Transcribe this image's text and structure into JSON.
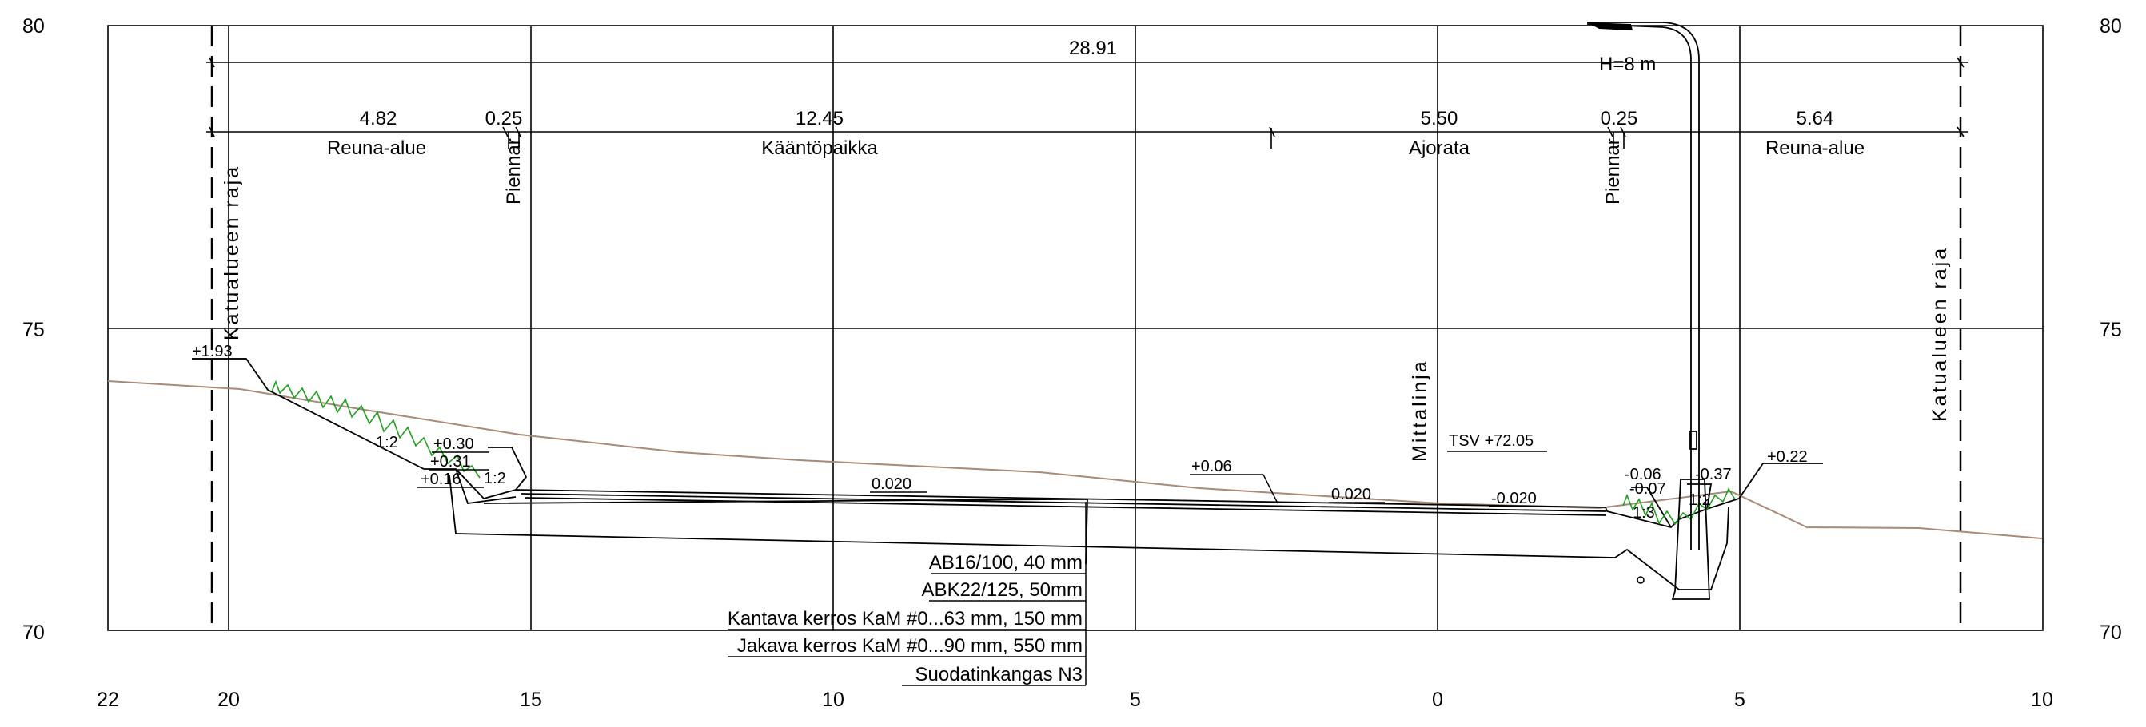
{
  "elevation_labels": {
    "top": "80",
    "middle": "75",
    "bottom": "70"
  },
  "offset_labels": [
    "22",
    "20",
    "15",
    "10",
    "5",
    "0",
    "5",
    "10"
  ],
  "total_width": "28.91",
  "pole_label": "H=8 m",
  "zones": [
    {
      "width": "4.82",
      "name": "Reuna-alue"
    },
    {
      "width": "0.25",
      "name": "Piennar"
    },
    {
      "width": "12.45",
      "name": "Kääntöpaikka"
    },
    {
      "width": "5.50",
      "name": "Ajorata"
    },
    {
      "width": "0.25",
      "name": "Piennar"
    },
    {
      "width": "5.64",
      "name": "Reuna-alue"
    }
  ],
  "boundary_left": "Katualueen raja",
  "boundary_right": "Katualueen raja",
  "centerline_label": "Mittalinja",
  "tsv_label": "TSV +72.05",
  "heights": {
    "left_top": "+1.93",
    "h030": "+0.30",
    "h031": "+0.31",
    "h016": "+0.16",
    "h006": "+0.06",
    "h_m006": "-0.06",
    "h_m007": "-0.07",
    "h_m037": "-0.37",
    "h022": "+0.22"
  },
  "slopes": {
    "left_fill": "1:2",
    "left_ditch": "1:2",
    "right_ditch_a": "1:3",
    "right_ditch_b": "1:2"
  },
  "crossfalls": {
    "turn": "0.020",
    "road_a": "0.020",
    "road_b": "-0.020"
  },
  "layers": [
    "AB16/100, 40 mm",
    "ABK22/125, 50mm",
    "Kantava kerros KaM #0...63 mm, 150 mm",
    "Jakava kerros KaM #0...90 mm, 550 mm",
    "Suodatinkangas N3"
  ],
  "colors": {
    "ground": "#a88a78",
    "grass": "#1ea01e",
    "line": "#000000"
  }
}
